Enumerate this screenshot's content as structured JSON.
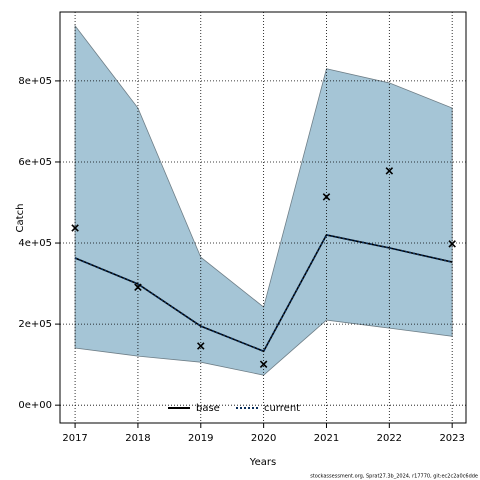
{
  "chart_data": {
    "type": "line",
    "xlabel": "Years",
    "ylabel": "Catch",
    "x": [
      2017,
      2018,
      2019,
      2020,
      2021,
      2022,
      2023
    ],
    "xlim": [
      2016.76,
      2023.22
    ],
    "xticks": [
      2017,
      2018,
      2019,
      2020,
      2021,
      2022,
      2023
    ],
    "ylim": [
      -44000,
      970000
    ],
    "yticks": [
      {
        "value": 0,
        "label": "0e+00"
      },
      {
        "value": 200000,
        "label": "2e+05"
      },
      {
        "value": 400000,
        "label": "4e+05"
      },
      {
        "value": 600000,
        "label": "6e+05"
      },
      {
        "value": 800000,
        "label": "8e+05"
      }
    ],
    "grid": true,
    "legend": "bottom",
    "band": {
      "color": "#a5c5d6",
      "upper": [
        936000,
        733000,
        365000,
        242000,
        830000,
        795000,
        733000
      ],
      "lower": [
        141000,
        121000,
        106000,
        74000,
        210000,
        190000,
        170000
      ]
    },
    "series": [
      {
        "name": "base",
        "color": "#000000",
        "values": [
          363000,
          299000,
          195000,
          133000,
          420000,
          388000,
          353000
        ]
      },
      {
        "name": "current",
        "color": "#0a2f5c",
        "values": [
          363000,
          299000,
          195000,
          133000,
          420000,
          388000,
          353000
        ]
      }
    ],
    "points": {
      "color": "#000000",
      "values": [
        437000,
        291000,
        146000,
        101000,
        514000,
        578000,
        398000
      ]
    },
    "footnote": "stockassessment.org, Sprat27.3b_2024, r17770, git:ec2c2a0c6dde"
  }
}
